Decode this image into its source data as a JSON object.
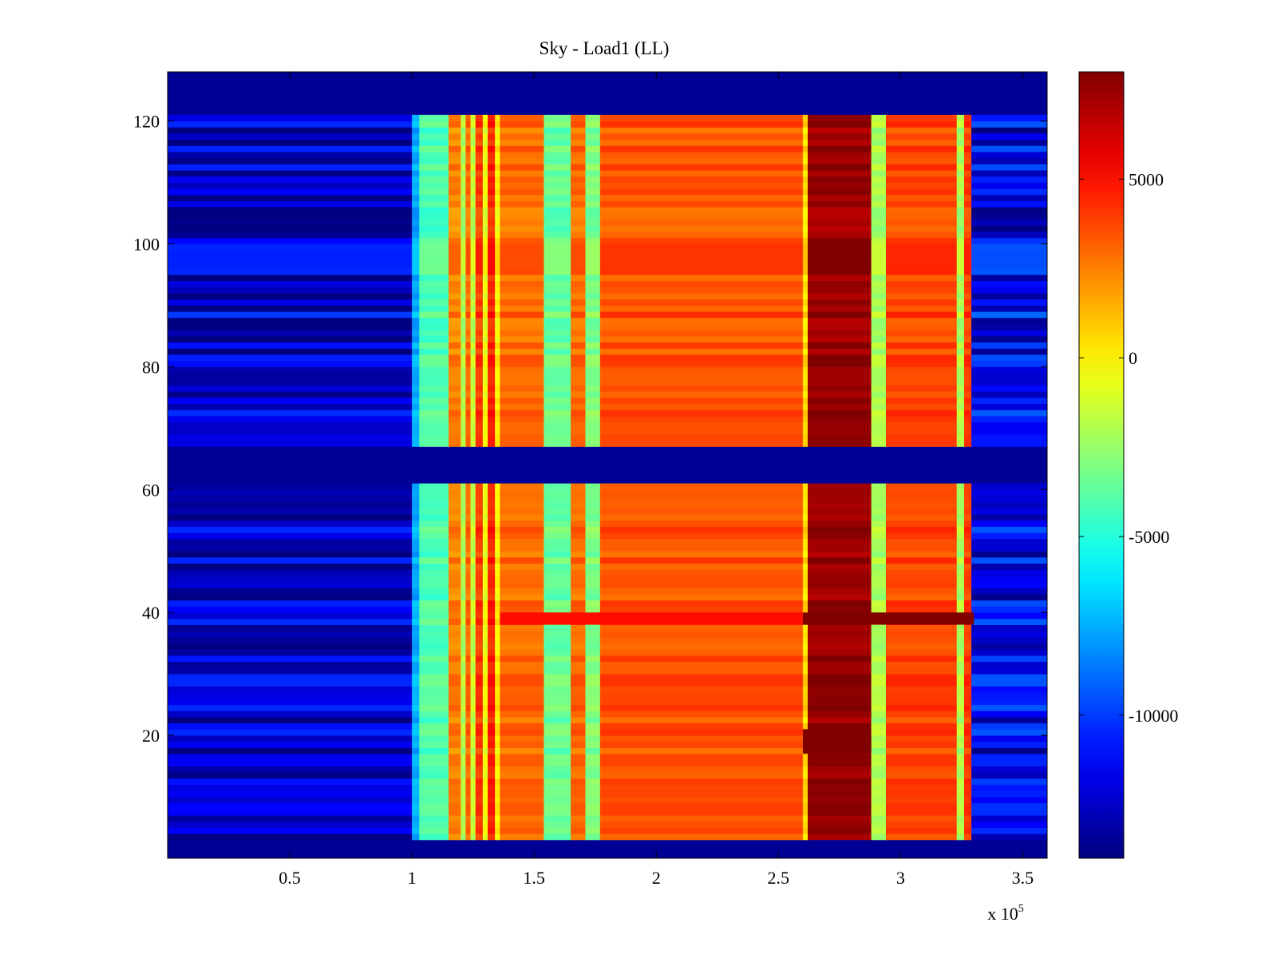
{
  "chart_data": {
    "type": "heatmap",
    "title": "Sky - Load1 (LL)",
    "xlabel": "",
    "ylabel": "",
    "x_multiplier_label": "x 10",
    "x_multiplier_exponent": "5",
    "xlim": [
      0,
      3.6
    ],
    "ylim": [
      0,
      128
    ],
    "x_ticks": [
      0.5,
      1,
      1.5,
      2,
      2.5,
      3,
      3.5
    ],
    "x_tick_labels": [
      "0.5",
      "1",
      "1.5",
      "2",
      "2.5",
      "3",
      "3.5"
    ],
    "y_ticks": [
      20,
      40,
      60,
      80,
      100,
      120
    ],
    "y_tick_labels": [
      "20",
      "40",
      "60",
      "80",
      "100",
      "120"
    ],
    "colormap": "jet",
    "clim": [
      -14000,
      8000
    ],
    "colorbar_ticks": [
      5000,
      0,
      -5000,
      -10000
    ],
    "colorbar_tick_labels": [
      "5000",
      "0",
      "-5000",
      "-10000"
    ],
    "masked_rows": [
      [
        0,
        3
      ],
      [
        61,
        67
      ],
      [
        121,
        128
      ]
    ],
    "x_bands": [
      {
        "x0": 0.0,
        "x1": 1.0,
        "value": -12500
      },
      {
        "x0": 1.0,
        "x1": 1.03,
        "value": -7500
      },
      {
        "x0": 1.03,
        "x1": 1.15,
        "value": -4000
      },
      {
        "x0": 1.15,
        "x1": 1.2,
        "value": 2500
      },
      {
        "x0": 1.2,
        "x1": 1.22,
        "value": -2000
      },
      {
        "x0": 1.22,
        "x1": 1.24,
        "value": 3000
      },
      {
        "x0": 1.24,
        "x1": 1.26,
        "value": -1500
      },
      {
        "x0": 1.26,
        "x1": 1.29,
        "value": 4000
      },
      {
        "x0": 1.29,
        "x1": 1.31,
        "value": -500
      },
      {
        "x0": 1.31,
        "x1": 1.34,
        "value": 4500
      },
      {
        "x0": 1.34,
        "x1": 1.36,
        "value": 0
      },
      {
        "x0": 1.36,
        "x1": 1.54,
        "value": 3000
      },
      {
        "x0": 1.54,
        "x1": 1.65,
        "value": -3500
      },
      {
        "x0": 1.65,
        "x1": 1.71,
        "value": 3000
      },
      {
        "x0": 1.71,
        "x1": 1.77,
        "value": -3000
      },
      {
        "x0": 1.77,
        "x1": 2.6,
        "value": 3500
      },
      {
        "x0": 2.6,
        "x1": 2.62,
        "value": 500
      },
      {
        "x0": 2.62,
        "x1": 2.88,
        "value": 7500
      },
      {
        "x0": 2.88,
        "x1": 2.94,
        "value": -2000
      },
      {
        "x0": 2.94,
        "x1": 3.23,
        "value": 3800
      },
      {
        "x0": 3.23,
        "x1": 3.26,
        "value": -2000
      },
      {
        "x0": 3.26,
        "x1": 3.29,
        "value": 4000
      },
      {
        "x0": 3.29,
        "x1": 3.6,
        "value": -11500
      }
    ],
    "highlight_rows": [
      {
        "y0": 38,
        "y1": 40,
        "x0": 2.6,
        "x1": 3.3,
        "value": 8000
      },
      {
        "y0": 38,
        "y1": 40,
        "x0": 1.36,
        "x1": 2.6,
        "value": 5000
      },
      {
        "y0": 17,
        "y1": 21,
        "x0": 2.6,
        "x1": 2.88,
        "value": 8000
      }
    ]
  }
}
